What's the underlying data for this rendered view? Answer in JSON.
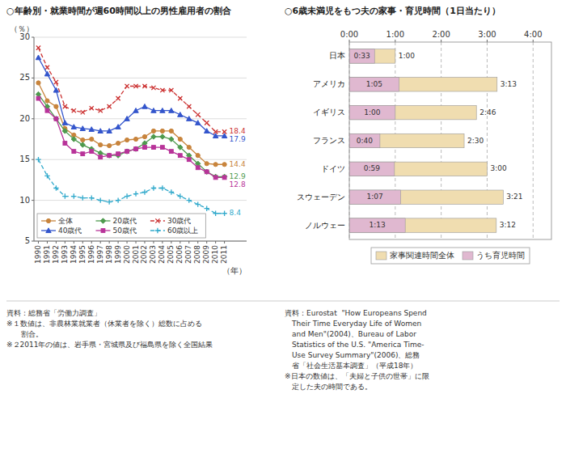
{
  "chart_data": [
    {
      "type": "line",
      "title": "○年齢別・就業時間が週60時間以上の男性雇用者の割合",
      "xlabel": "（年）",
      "ylabel": "（％）",
      "x": [
        1990,
        1991,
        1992,
        1993,
        1994,
        1995,
        1996,
        1997,
        1998,
        1999,
        2000,
        2001,
        2002,
        2003,
        2004,
        2005,
        2006,
        2007,
        2008,
        2009,
        2010,
        2011
      ],
      "xlim": [
        1989.5,
        2013.5
      ],
      "xticks": [
        1990,
        1991,
        1992,
        1993,
        1994,
        1995,
        1996,
        1997,
        1998,
        1999,
        2000,
        2001,
        2002,
        2003,
        2004,
        2005,
        2006,
        2007,
        2008,
        2009,
        2010,
        2011
      ],
      "ylim": [
        5,
        30
      ],
      "yticks": [
        5,
        10,
        15,
        20,
        25,
        30
      ],
      "grid": true,
      "legend": "lower left",
      "series": [
        {
          "name": "全体",
          "color": "#c8843c",
          "marker": "circle",
          "line_style": "solid",
          "values": [
            24.4,
            22.2,
            21.5,
            18.8,
            18.0,
            17.4,
            17.5,
            16.8,
            16.7,
            17.0,
            17.4,
            17.5,
            17.8,
            18.5,
            18.5,
            18.5,
            17.5,
            16.5,
            15.5,
            14.5,
            14.4,
            14.4
          ]
        },
        {
          "name": "20歳代",
          "color": "#4e9a4e",
          "marker": "diamond",
          "line_style": "solid",
          "values": [
            23.0,
            21.5,
            20.0,
            18.5,
            17.5,
            16.8,
            16.3,
            15.8,
            15.5,
            15.5,
            16.0,
            16.3,
            17.0,
            17.8,
            17.8,
            17.5,
            16.5,
            15.5,
            14.5,
            13.5,
            12.9,
            12.9
          ]
        },
        {
          "name": "30歳代",
          "color": "#cc3333",
          "marker": "x",
          "line_style": "dashed",
          "values": [
            28.7,
            26.3,
            24.5,
            21.5,
            21.0,
            20.8,
            21.3,
            21.0,
            21.5,
            22.5,
            24.0,
            24.0,
            24.0,
            23.8,
            23.5,
            23.5,
            22.5,
            21.5,
            20.5,
            19.5,
            18.4,
            18.4
          ]
        },
        {
          "name": "40歳代",
          "color": "#3355cc",
          "marker": "triangle",
          "line_style": "solid",
          "values": [
            27.5,
            25.5,
            23.5,
            19.5,
            19.0,
            18.8,
            18.7,
            18.5,
            18.5,
            19.0,
            20.0,
            21.0,
            21.5,
            21.0,
            21.0,
            21.0,
            20.5,
            20.0,
            19.5,
            18.5,
            17.9,
            17.9
          ]
        },
        {
          "name": "50歳代",
          "color": "#b83399",
          "marker": "square",
          "line_style": "solid",
          "values": [
            22.5,
            21.0,
            20.0,
            17.0,
            16.0,
            15.7,
            16.0,
            15.3,
            15.5,
            15.7,
            16.0,
            16.3,
            16.5,
            16.5,
            16.5,
            16.0,
            15.5,
            15.0,
            14.0,
            13.5,
            12.8,
            12.8
          ]
        },
        {
          "name": "60歳以上",
          "color": "#33aacc",
          "marker": "plus",
          "line_style": "dashed",
          "values": [
            15.0,
            13.0,
            11.5,
            10.5,
            10.5,
            10.3,
            10.3,
            10.0,
            9.8,
            10.0,
            10.5,
            10.8,
            11.0,
            11.5,
            11.5,
            11.0,
            10.5,
            10.0,
            9.5,
            9.0,
            8.4,
            8.4
          ]
        }
      ],
      "annotations": [
        {
          "text": "14.4",
          "x": 2011,
          "y": 14.4,
          "color": "#c8843c"
        },
        {
          "text": "12.9",
          "x": 2011,
          "y": 12.9,
          "color": "#4e9a4e"
        },
        {
          "text": "18.4",
          "x": 2011,
          "y": 18.4,
          "color": "#cc3333"
        },
        {
          "text": "17.9",
          "x": 2011,
          "y": 17.9,
          "color": "#3355cc"
        },
        {
          "text": "12.8",
          "x": 2011,
          "y": 12.8,
          "color": "#b83399"
        },
        {
          "text": "8.4",
          "x": 2011,
          "y": 8.4,
          "color": "#33aacc"
        }
      ],
      "notes": [
        "資料：総務省「労働力調査」",
        "※１数値は、非農林業就業者（休業者を除く）総数に占める",
        "　　割合。",
        "※２2011年の値は、岩手県・宮城県及び福島県を除く全国結果"
      ]
    },
    {
      "type": "bar",
      "orientation": "horizontal",
      "stacked": false,
      "title": "○6歳未満児をもつ夫の家事・育児時間（1日当たり）",
      "categories": [
        "日本",
        "アメリカ",
        "イギリス",
        "フランス",
        "ドイツ",
        "スウェーデン",
        "ノルウェー"
      ],
      "xlim": [
        0,
        4.4
      ],
      "xticks": [
        {
          "value": 0,
          "label": "0:00"
        },
        {
          "value": 1,
          "label": "1:00"
        },
        {
          "value": 2,
          "label": "2:00"
        },
        {
          "value": 3,
          "label": "3:00"
        },
        {
          "value": 4,
          "label": "4:00"
        }
      ],
      "grid": true,
      "legend": "bottom",
      "data_labels": true,
      "series": [
        {
          "name": "家事関連時間全体",
          "color": "#f0ddb0",
          "values": [
            1.0,
            3.217,
            2.767,
            2.5,
            3.0,
            3.35,
            3.2
          ],
          "value_labels": [
            "1:00",
            "3:13",
            "2:46",
            "2:30",
            "3:00",
            "3:21",
            "3:12"
          ]
        },
        {
          "name": "うち育児時間",
          "color": "#e0b8d0",
          "values": [
            0.55,
            1.083,
            1.0,
            0.667,
            0.983,
            1.117,
            1.217
          ],
          "value_labels": [
            "0:33",
            "1:05",
            "1:00",
            "0:40",
            "0:59",
            "1:07",
            "1:13"
          ]
        }
      ],
      "notes": [
        "資料：Eurostat  \"How Europeans Spend",
        "　Their Time Everyday Life of Women",
        "　and Men\"(2004)、Bureau of Labor",
        "　Statistics of the U.S. \"America Time-",
        "　Use Survey Summary\"(2006)、総務",
        "　省「社会生活基本調査」（平成18年）",
        "※日本の数値は、「夫婦と子供の世帯」に限",
        "　定した夫の時間である。"
      ]
    }
  ]
}
